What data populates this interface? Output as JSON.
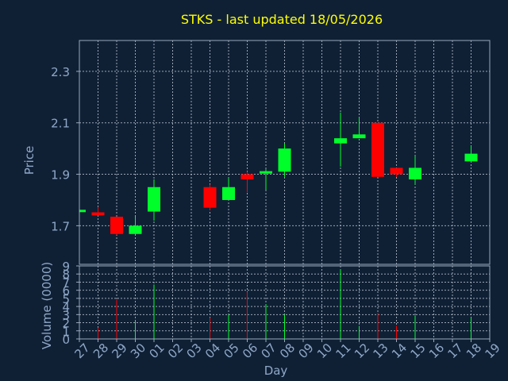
{
  "chart_data": {
    "type": "candlestick",
    "title": "STKS - last updated 18/05/2026",
    "colors": {
      "background": "#0f2035",
      "title": "#ffff00",
      "axis_text": "#8fa8c8",
      "frame": "#9aa8bc",
      "grid": "#c0c8d4",
      "up": "#00ff2a",
      "down": "#ff0000"
    },
    "price_panel": {
      "ylabel": "Price",
      "ylim": [
        1.55,
        2.42
      ],
      "yticks": [
        1.7,
        1.9,
        2.1,
        2.3
      ],
      "ytick_labels": [
        "1.7",
        "1.9",
        "2.1",
        "2.3"
      ],
      "grid": true
    },
    "volume_panel": {
      "ylabel": "Volume (0000)",
      "ylim": [
        0,
        9
      ],
      "yticks": [
        0,
        1,
        2,
        3,
        4,
        5,
        6,
        7,
        8,
        9
      ],
      "ytick_labels": [
        "0",
        "1",
        "2",
        "3",
        "4",
        "5",
        "6",
        "7",
        "8",
        "9"
      ],
      "grid": true
    },
    "xlabel": "Day",
    "x_tick_labels": [
      "27",
      "28",
      "29",
      "30",
      "01",
      "02",
      "03",
      "04",
      "05",
      "06",
      "07",
      "08",
      "09",
      "10",
      "11",
      "12",
      "13",
      "14",
      "15",
      "16",
      "17",
      "18",
      "19"
    ],
    "candles": [
      {
        "day": "27",
        "open": 1.755,
        "high": 1.762,
        "low": 1.748,
        "close": 1.762,
        "volume": 0.0
      },
      {
        "day": "28",
        "open": 1.752,
        "high": 1.773,
        "low": 1.74,
        "close": 1.74,
        "volume": 1.4
      },
      {
        "day": "29",
        "open": 1.735,
        "high": 1.735,
        "low": 1.665,
        "close": 1.668,
        "volume": 4.8
      },
      {
        "day": "30",
        "open": 1.668,
        "high": 1.735,
        "low": 1.668,
        "close": 1.7,
        "volume": 2.2
      },
      {
        "day": "01",
        "open": 1.755,
        "high": 1.88,
        "low": 1.72,
        "close": 1.85,
        "volume": 6.7
      },
      {
        "day": "04",
        "open": 1.85,
        "high": 1.86,
        "low": 1.76,
        "close": 1.77,
        "volume": 2.6
      },
      {
        "day": "05",
        "open": 1.8,
        "high": 1.885,
        "low": 1.8,
        "close": 1.85,
        "volume": 3.0
      },
      {
        "day": "06",
        "open": 1.9,
        "high": 1.91,
        "low": 1.83,
        "close": 1.88,
        "volume": 5.8
      },
      {
        "day": "07",
        "open": 1.905,
        "high": 1.92,
        "low": 1.84,
        "close": 1.912,
        "volume": 4.3
      },
      {
        "day": "08",
        "open": 1.91,
        "high": 2.02,
        "low": 1.89,
        "close": 2.0,
        "volume": 3.0
      },
      {
        "day": "11",
        "open": 2.02,
        "high": 2.14,
        "low": 1.93,
        "close": 2.04,
        "volume": 8.6
      },
      {
        "day": "12",
        "open": 2.04,
        "high": 2.12,
        "low": 2.04,
        "close": 2.055,
        "volume": 1.6
      },
      {
        "day": "13",
        "open": 2.1,
        "high": 2.1,
        "low": 1.89,
        "close": 1.89,
        "volume": 3.2
      },
      {
        "day": "14",
        "open": 1.925,
        "high": 1.925,
        "low": 1.89,
        "close": 1.9,
        "volume": 1.6
      },
      {
        "day": "15",
        "open": 1.88,
        "high": 1.97,
        "low": 1.86,
        "close": 1.925,
        "volume": 2.9
      },
      {
        "day": "18",
        "open": 1.95,
        "high": 2.01,
        "low": 1.95,
        "close": 1.98,
        "volume": 2.6
      }
    ]
  }
}
